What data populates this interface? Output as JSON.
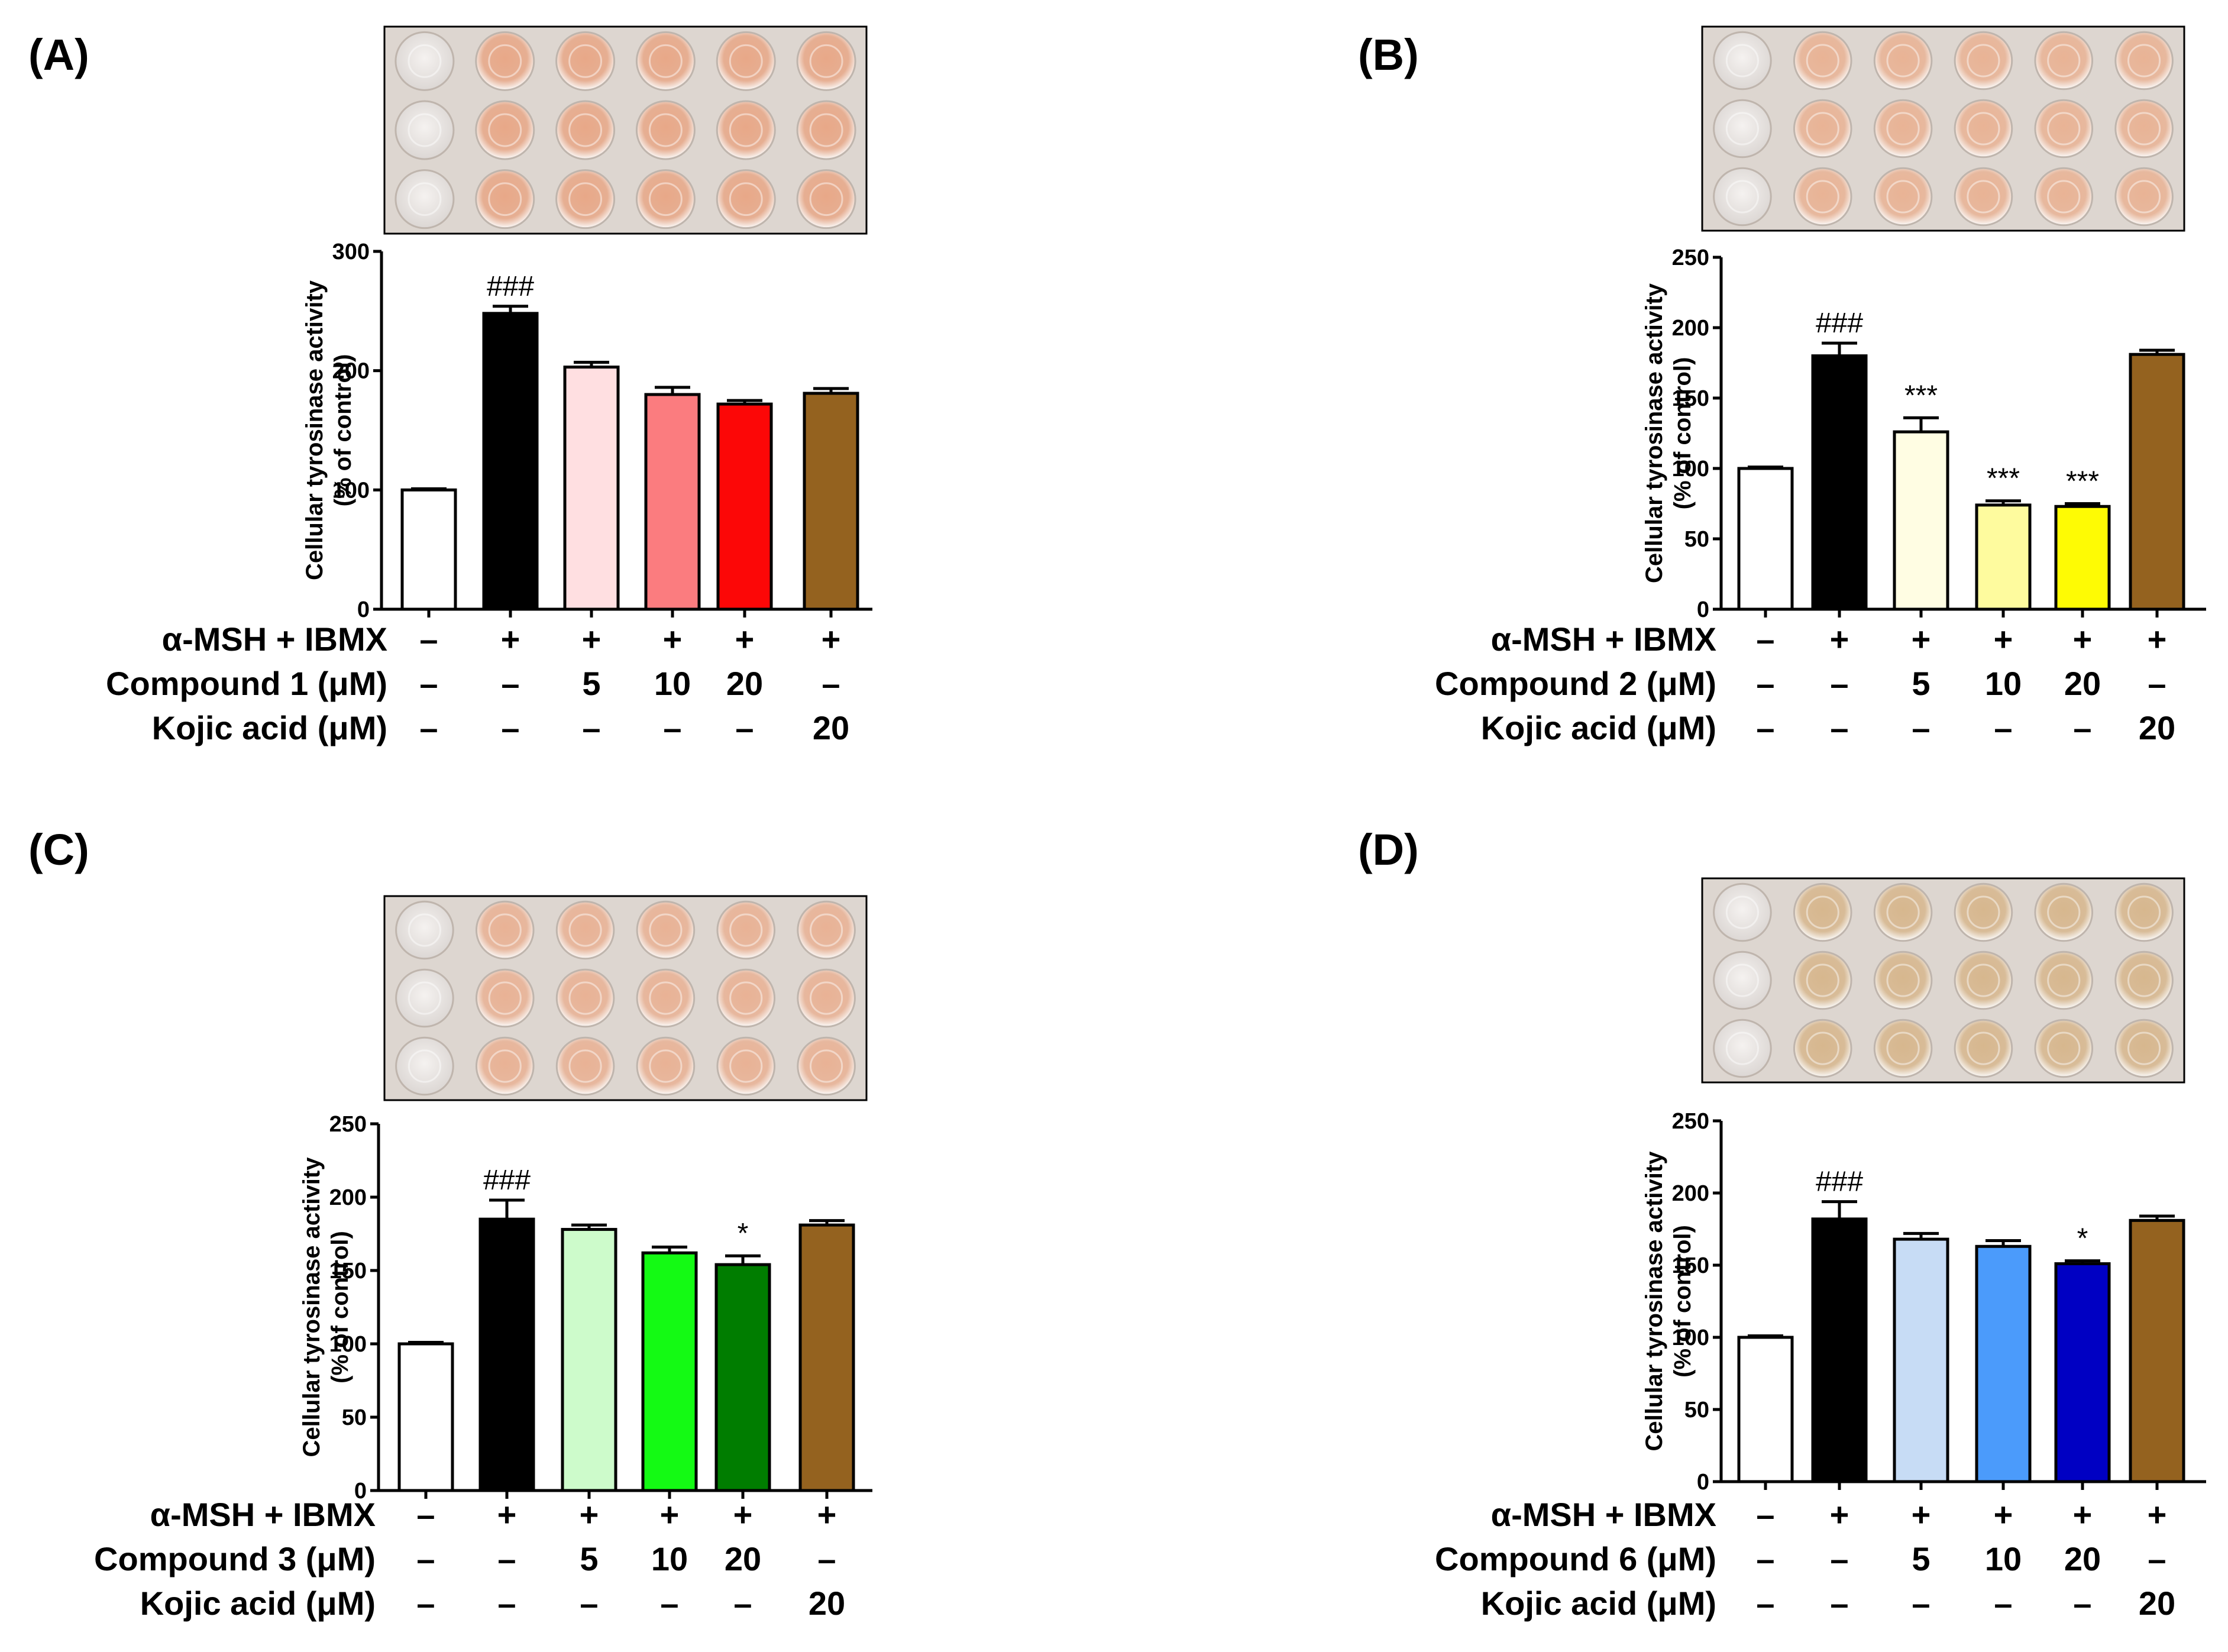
{
  "colors": {
    "white": "#ffffff",
    "black": "#000000",
    "kojic": "#94621f",
    "c1_5": "#ffdfe1",
    "c1_10": "#fb7c7f",
    "c1_20": "#fc0707",
    "c2_5": "#fffde3",
    "c2_10": "#fefb9e",
    "c2_20": "#fefb04",
    "c3_5": "#cdfbcb",
    "c3_10": "#14fa14",
    "c3_20": "#007d00",
    "c6_5": "#c7dcf5",
    "c6_10": "#4b9bfb",
    "c6_20": "#0000c3"
  },
  "chart_data": [
    {
      "panel": "(A)",
      "type": "bar",
      "ylabel_line1": "Cellular tyrosinase activity",
      "ylabel_line2": "(% of control)",
      "ylim": [
        0,
        300
      ],
      "yticks": [
        "0",
        "100",
        "200",
        "300"
      ],
      "values": [
        100,
        248,
        203,
        180,
        172,
        181
      ],
      "errors": [
        1,
        6,
        4,
        6,
        3,
        4
      ],
      "colors": [
        "#ffffff",
        "#000000",
        "#ffdfe1",
        "#fb7c7f",
        "#fc0707",
        "#94621f"
      ],
      "annotations": [
        "",
        "###",
        "",
        "",
        "",
        ""
      ],
      "rows": [
        {
          "label": "α-MSH + IBMX",
          "cells": [
            "–",
            "+",
            "+",
            "+",
            "+",
            "+"
          ]
        },
        {
          "label": "Compound 1 (μM)",
          "cells": [
            "–",
            "–",
            "5",
            "10",
            "20",
            "–"
          ]
        },
        {
          "label": "Kojic acid (μM)",
          "cells": [
            "–",
            "–",
            "–",
            "–",
            "–",
            "20"
          ]
        }
      ]
    },
    {
      "panel": "(B)",
      "type": "bar",
      "ylabel_line1": "Cellular tyrosinase activity",
      "ylabel_line2": "(% of control)",
      "ylim": [
        0,
        250
      ],
      "yticks": [
        "0",
        "50",
        "100",
        "150",
        "200",
        "250"
      ],
      "values": [
        100,
        180,
        126,
        74,
        73,
        181
      ],
      "errors": [
        1,
        9,
        10,
        3,
        2,
        3
      ],
      "colors": [
        "#ffffff",
        "#000000",
        "#fffde3",
        "#fefb9e",
        "#fefb04",
        "#94621f"
      ],
      "annotations": [
        "",
        "###",
        "***",
        "***",
        "***",
        ""
      ],
      "rows": [
        {
          "label": "α-MSH + IBMX",
          "cells": [
            "–",
            "+",
            "+",
            "+",
            "+",
            "+"
          ]
        },
        {
          "label": "Compound 2 (μM)",
          "cells": [
            "–",
            "–",
            "5",
            "10",
            "20",
            "–"
          ]
        },
        {
          "label": "Kojic acid (μM)",
          "cells": [
            "–",
            "–",
            "–",
            "–",
            "–",
            "20"
          ]
        }
      ]
    },
    {
      "panel": "(C)",
      "type": "bar",
      "ylabel_line1": "Cellular tyrosinase activity",
      "ylabel_line2": "(% of control)",
      "ylim": [
        0,
        250
      ],
      "yticks": [
        "0",
        "50",
        "100",
        "150",
        "200",
        "250"
      ],
      "values": [
        100,
        185,
        178,
        162,
        154,
        181
      ],
      "errors": [
        1,
        13,
        3,
        4,
        6,
        3
      ],
      "colors": [
        "#ffffff",
        "#000000",
        "#cdfbcb",
        "#14fa14",
        "#007d00",
        "#94621f"
      ],
      "annotations": [
        "",
        "###",
        "",
        "",
        "*",
        ""
      ],
      "rows": [
        {
          "label": "α-MSH + IBMX",
          "cells": [
            "–",
            "+",
            "+",
            "+",
            "+",
            "+"
          ]
        },
        {
          "label": "Compound 3 (μM)",
          "cells": [
            "–",
            "–",
            "5",
            "10",
            "20",
            "–"
          ]
        },
        {
          "label": "Kojic acid (μM)",
          "cells": [
            "–",
            "–",
            "–",
            "–",
            "–",
            "20"
          ]
        }
      ]
    },
    {
      "panel": "(D)",
      "type": "bar",
      "ylabel_line1": "Cellular tyrosinase activity",
      "ylabel_line2": "(% of control)",
      "ylim": [
        0,
        250
      ],
      "yticks": [
        "0",
        "50",
        "100",
        "150",
        "200",
        "250"
      ],
      "values": [
        100,
        182,
        168,
        163,
        151,
        181
      ],
      "errors": [
        1,
        12,
        4,
        4,
        2,
        3
      ],
      "colors": [
        "#ffffff",
        "#000000",
        "#c7dcf5",
        "#4b9bfb",
        "#0000c3",
        "#94621f"
      ],
      "annotations": [
        "",
        "###",
        "",
        "",
        "*",
        ""
      ],
      "rows": [
        {
          "label": "α-MSH + IBMX",
          "cells": [
            "–",
            "+",
            "+",
            "+",
            "+",
            "+"
          ]
        },
        {
          "label": "Compound 6 (μM)",
          "cells": [
            "–",
            "–",
            "5",
            "10",
            "20",
            "–"
          ]
        },
        {
          "label": "Kojic acid (μM)",
          "cells": [
            "–",
            "–",
            "–",
            "–",
            "–",
            "20"
          ]
        }
      ]
    }
  ]
}
